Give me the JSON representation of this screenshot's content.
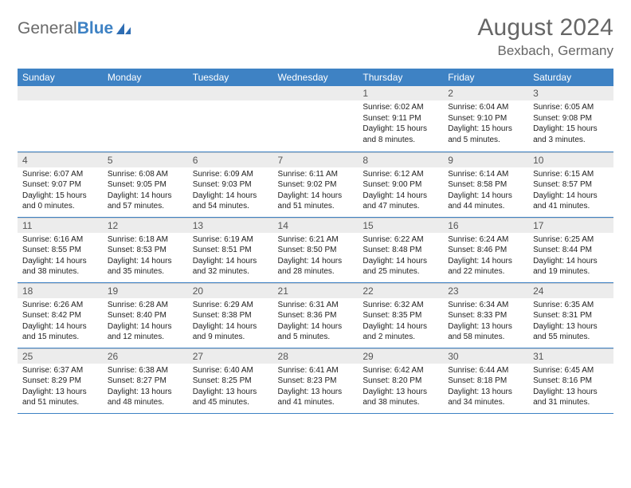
{
  "brand": {
    "part1": "General",
    "part2": "Blue"
  },
  "title": "August 2024",
  "location": "Bexbach, Germany",
  "colors": {
    "header_bg": "#3e82c4",
    "header_fg": "#ffffff",
    "daynum_bg": "#ececec",
    "text": "#222222",
    "title_color": "#666666"
  },
  "weekdays": [
    "Sunday",
    "Monday",
    "Tuesday",
    "Wednesday",
    "Thursday",
    "Friday",
    "Saturday"
  ],
  "weeks": [
    [
      null,
      null,
      null,
      null,
      {
        "n": "1",
        "sunrise": "6:02 AM",
        "sunset": "9:11 PM",
        "daylight": "15 hours and 8 minutes."
      },
      {
        "n": "2",
        "sunrise": "6:04 AM",
        "sunset": "9:10 PM",
        "daylight": "15 hours and 5 minutes."
      },
      {
        "n": "3",
        "sunrise": "6:05 AM",
        "sunset": "9:08 PM",
        "daylight": "15 hours and 3 minutes."
      }
    ],
    [
      {
        "n": "4",
        "sunrise": "6:07 AM",
        "sunset": "9:07 PM",
        "daylight": "15 hours and 0 minutes."
      },
      {
        "n": "5",
        "sunrise": "6:08 AM",
        "sunset": "9:05 PM",
        "daylight": "14 hours and 57 minutes."
      },
      {
        "n": "6",
        "sunrise": "6:09 AM",
        "sunset": "9:03 PM",
        "daylight": "14 hours and 54 minutes."
      },
      {
        "n": "7",
        "sunrise": "6:11 AM",
        "sunset": "9:02 PM",
        "daylight": "14 hours and 51 minutes."
      },
      {
        "n": "8",
        "sunrise": "6:12 AM",
        "sunset": "9:00 PM",
        "daylight": "14 hours and 47 minutes."
      },
      {
        "n": "9",
        "sunrise": "6:14 AM",
        "sunset": "8:58 PM",
        "daylight": "14 hours and 44 minutes."
      },
      {
        "n": "10",
        "sunrise": "6:15 AM",
        "sunset": "8:57 PM",
        "daylight": "14 hours and 41 minutes."
      }
    ],
    [
      {
        "n": "11",
        "sunrise": "6:16 AM",
        "sunset": "8:55 PM",
        "daylight": "14 hours and 38 minutes."
      },
      {
        "n": "12",
        "sunrise": "6:18 AM",
        "sunset": "8:53 PM",
        "daylight": "14 hours and 35 minutes."
      },
      {
        "n": "13",
        "sunrise": "6:19 AM",
        "sunset": "8:51 PM",
        "daylight": "14 hours and 32 minutes."
      },
      {
        "n": "14",
        "sunrise": "6:21 AM",
        "sunset": "8:50 PM",
        "daylight": "14 hours and 28 minutes."
      },
      {
        "n": "15",
        "sunrise": "6:22 AM",
        "sunset": "8:48 PM",
        "daylight": "14 hours and 25 minutes."
      },
      {
        "n": "16",
        "sunrise": "6:24 AM",
        "sunset": "8:46 PM",
        "daylight": "14 hours and 22 minutes."
      },
      {
        "n": "17",
        "sunrise": "6:25 AM",
        "sunset": "8:44 PM",
        "daylight": "14 hours and 19 minutes."
      }
    ],
    [
      {
        "n": "18",
        "sunrise": "6:26 AM",
        "sunset": "8:42 PM",
        "daylight": "14 hours and 15 minutes."
      },
      {
        "n": "19",
        "sunrise": "6:28 AM",
        "sunset": "8:40 PM",
        "daylight": "14 hours and 12 minutes."
      },
      {
        "n": "20",
        "sunrise": "6:29 AM",
        "sunset": "8:38 PM",
        "daylight": "14 hours and 9 minutes."
      },
      {
        "n": "21",
        "sunrise": "6:31 AM",
        "sunset": "8:36 PM",
        "daylight": "14 hours and 5 minutes."
      },
      {
        "n": "22",
        "sunrise": "6:32 AM",
        "sunset": "8:35 PM",
        "daylight": "14 hours and 2 minutes."
      },
      {
        "n": "23",
        "sunrise": "6:34 AM",
        "sunset": "8:33 PM",
        "daylight": "13 hours and 58 minutes."
      },
      {
        "n": "24",
        "sunrise": "6:35 AM",
        "sunset": "8:31 PM",
        "daylight": "13 hours and 55 minutes."
      }
    ],
    [
      {
        "n": "25",
        "sunrise": "6:37 AM",
        "sunset": "8:29 PM",
        "daylight": "13 hours and 51 minutes."
      },
      {
        "n": "26",
        "sunrise": "6:38 AM",
        "sunset": "8:27 PM",
        "daylight": "13 hours and 48 minutes."
      },
      {
        "n": "27",
        "sunrise": "6:40 AM",
        "sunset": "8:25 PM",
        "daylight": "13 hours and 45 minutes."
      },
      {
        "n": "28",
        "sunrise": "6:41 AM",
        "sunset": "8:23 PM",
        "daylight": "13 hours and 41 minutes."
      },
      {
        "n": "29",
        "sunrise": "6:42 AM",
        "sunset": "8:20 PM",
        "daylight": "13 hours and 38 minutes."
      },
      {
        "n": "30",
        "sunrise": "6:44 AM",
        "sunset": "8:18 PM",
        "daylight": "13 hours and 34 minutes."
      },
      {
        "n": "31",
        "sunrise": "6:45 AM",
        "sunset": "8:16 PM",
        "daylight": "13 hours and 31 minutes."
      }
    ]
  ],
  "labels": {
    "sunrise": "Sunrise: ",
    "sunset": "Sunset: ",
    "daylight": "Daylight: "
  }
}
